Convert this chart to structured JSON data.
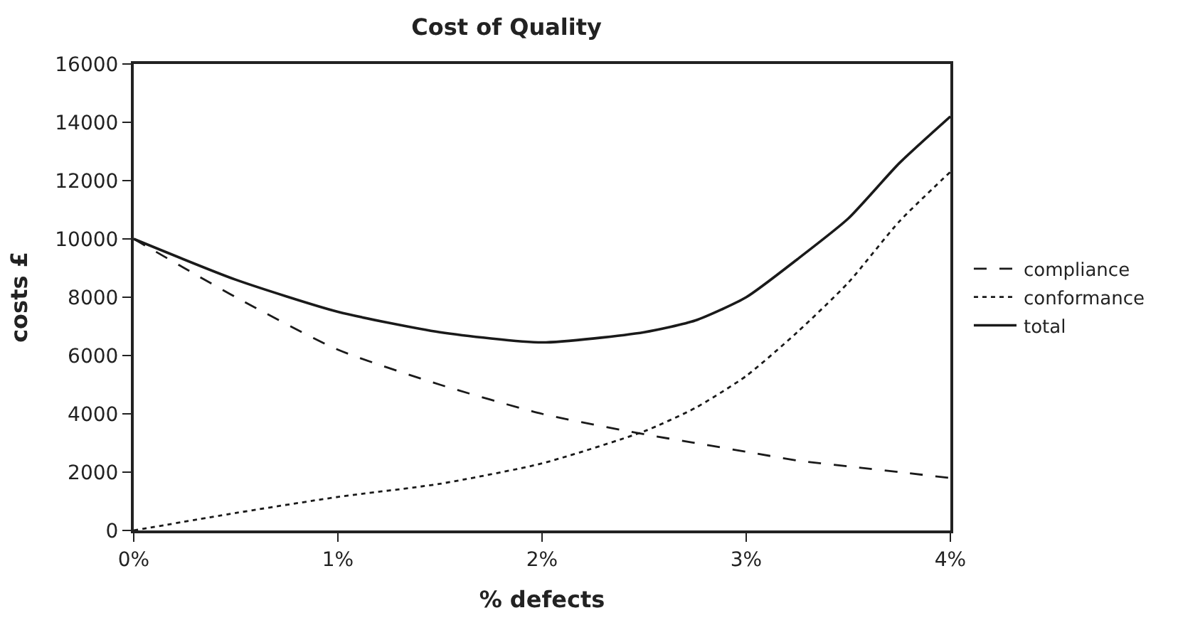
{
  "chart_data": {
    "type": "line",
    "title": "Cost of Quality",
    "xlabel": "% defects",
    "ylabel": "costs £",
    "x": [
      0,
      0.5,
      1,
      1.5,
      2,
      2.5,
      2.75,
      3,
      3.25,
      3.5,
      3.75,
      4
    ],
    "series": [
      {
        "name": "compliance",
        "color": "#1a1a1a",
        "line_style": "dashed",
        "values": [
          10000,
          8000,
          6200,
          5000,
          4000,
          3300,
          3000,
          2700,
          2400,
          2200,
          2000,
          1800
        ]
      },
      {
        "name": "conformance",
        "color": "#1a1a1a",
        "line_style": "dotted",
        "values": [
          0,
          600,
          1150,
          1600,
          2300,
          3400,
          4200,
          5300,
          6800,
          8500,
          10600,
          12300
        ]
      },
      {
        "name": "total",
        "color": "#1a1a1a",
        "line_style": "solid",
        "values": [
          10000,
          8600,
          7500,
          6800,
          6450,
          6800,
          7200,
          8000,
          9300,
          10700,
          12600,
          14200
        ]
      }
    ],
    "xlim": [
      0,
      4
    ],
    "xticks": [
      {
        "value": 0,
        "label": "0%"
      },
      {
        "value": 1,
        "label": "1%"
      },
      {
        "value": 2,
        "label": "2%"
      },
      {
        "value": 3,
        "label": "3%"
      },
      {
        "value": 4,
        "label": "4%"
      }
    ],
    "ylim": [
      0,
      16000
    ],
    "yticks": [
      0,
      2000,
      4000,
      6000,
      8000,
      10000,
      12000,
      14000,
      16000
    ],
    "legend": "right",
    "marker": "none"
  }
}
